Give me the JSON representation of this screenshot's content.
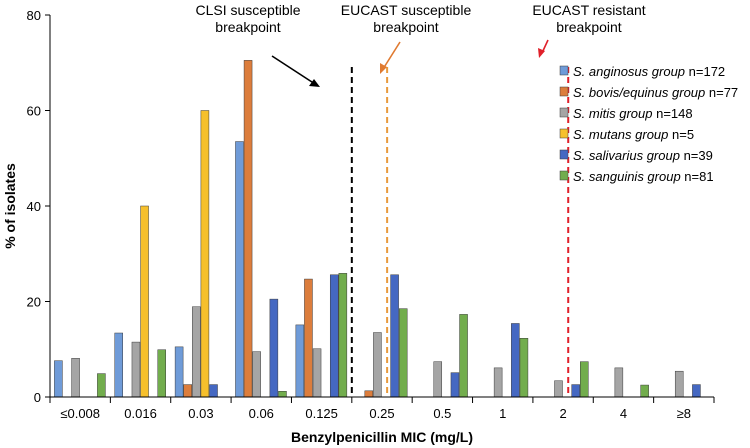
{
  "chart_data": {
    "type": "bar",
    "xlabel": "Benzylpenicillin MIC (mg/L)",
    "ylabel": "% of isolates",
    "ylim": [
      0,
      80
    ],
    "yticks": [
      0,
      20,
      40,
      60,
      80
    ],
    "grid": false,
    "legend_position": "right",
    "categories": [
      "≤0.008",
      "0.016",
      "0.03",
      "0.06",
      "0.125",
      "0.25",
      "0.5",
      "1",
      "2",
      "4",
      "≥8"
    ],
    "series": [
      {
        "name": "S. anginosus group",
        "suffix": "n=172",
        "color": "#6f9bd8",
        "values": [
          7.6,
          13.4,
          10.5,
          53.5,
          15.1,
          0,
          0,
          0,
          0,
          0,
          0
        ]
      },
      {
        "name": "S. bovis/equinus group",
        "suffix": "n=77",
        "color": "#dc7d3c",
        "values": [
          0,
          0,
          2.6,
          70.5,
          24.7,
          1.3,
          0,
          0,
          0,
          0,
          0
        ]
      },
      {
        "name": "S. mitis group",
        "suffix": "n=148",
        "color": "#a5a5a5",
        "values": [
          8.1,
          11.5,
          18.9,
          9.5,
          10.1,
          13.5,
          7.4,
          6.1,
          3.4,
          6.1,
          5.4
        ]
      },
      {
        "name": "S. mutans group",
        "suffix": "n=5",
        "color": "#f6c02c",
        "values": [
          0,
          40,
          60,
          0,
          0,
          0,
          0,
          0,
          0,
          0,
          0
        ]
      },
      {
        "name": "S. salivarius group",
        "suffix": "n=39",
        "color": "#4568c2",
        "values": [
          0,
          0,
          2.6,
          20.5,
          25.6,
          25.6,
          5.1,
          15.4,
          2.6,
          0,
          2.6
        ]
      },
      {
        "name": "S. sanguinis group",
        "suffix": "n=81",
        "color": "#72ad4d",
        "values": [
          4.9,
          9.9,
          0,
          1.2,
          25.9,
          18.5,
          17.3,
          12.3,
          7.4,
          2.5,
          0
        ]
      }
    ],
    "breakpoints": [
      {
        "label_lines": [
          "CLSI susceptible",
          "breakpoint"
        ],
        "color": "#000000",
        "x_value": 0.25,
        "arrow_color": "#000000"
      },
      {
        "label_lines": [
          "EUCAST susceptible",
          "breakpoint"
        ],
        "color": "#e89a3c",
        "x_value": 0.375,
        "arrow_color": "#e07a30"
      },
      {
        "label_lines": [
          "EUCAST resistant",
          "breakpoint"
        ],
        "color": "#e0202a",
        "x_value": 3,
        "arrow_color": "#e0202a"
      }
    ]
  }
}
